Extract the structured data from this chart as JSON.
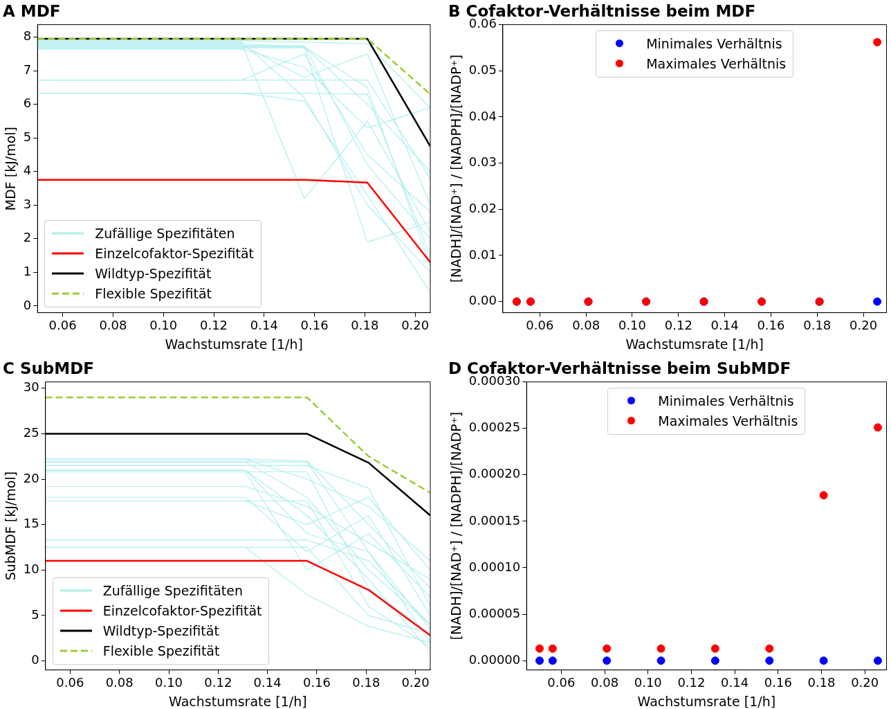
{
  "chart_data": [
    {
      "type": "line",
      "title": "A MDF",
      "xlabel": "Wachstumsrate [1/h]",
      "ylabel": "MDF [kJ/mol]",
      "legend": "bottom left",
      "marker": "none",
      "grid": false,
      "x": [
        0.05,
        0.056,
        0.081,
        0.106,
        0.131,
        0.156,
        0.181,
        0.206
      ],
      "xlim": [
        0.05,
        0.206
      ],
      "ylim": [
        -0.2,
        8.37
      ],
      "xticks": [
        {
          "value": 0.06,
          "label": "0.06"
        },
        {
          "value": 0.08,
          "label": "0.08"
        },
        {
          "value": 0.1,
          "label": "0.10"
        },
        {
          "value": 0.12,
          "label": "0.12"
        },
        {
          "value": 0.14,
          "label": "0.14"
        },
        {
          "value": 0.16,
          "label": "0.16"
        },
        {
          "value": 0.18,
          "label": "0.18"
        },
        {
          "value": 0.2,
          "label": "0.20"
        }
      ],
      "yticks": [
        0,
        1,
        2,
        3,
        4,
        5,
        6,
        7,
        8
      ],
      "series": [
        {
          "name": "Zufällige Spezifitäten",
          "color": "#afeeee",
          "values": [
            6.33,
            6.33,
            6.33,
            6.33,
            6.33,
            6.33,
            6.3,
            1.5
          ]
        },
        {
          "color": "#afeeee",
          "values": [
            6.33,
            6.33,
            6.33,
            6.33,
            6.33,
            6.1,
            3.3,
            0.4
          ]
        },
        {
          "color": "#afeeee",
          "values": [
            6.72,
            6.72,
            6.72,
            6.72,
            6.72,
            6.72,
            6.72,
            3.8
          ]
        },
        {
          "color": "#afeeee",
          "values": [
            6.72,
            6.72,
            6.72,
            6.72,
            6.72,
            7.5,
            4.5,
            2.8
          ]
        },
        {
          "color": "#afeeee",
          "values": [
            7.89,
            7.89,
            7.89,
            7.89,
            7.89,
            7.85,
            7.8,
            5.9
          ]
        },
        {
          "color": "#afeeee",
          "values": [
            7.86,
            7.86,
            7.86,
            7.86,
            7.86,
            6.2,
            3.0,
            1.0
          ]
        },
        {
          "color": "#afeeee",
          "values": [
            7.83,
            7.83,
            7.83,
            7.83,
            7.83,
            3.2,
            5.5,
            2.2
          ]
        },
        {
          "color": "#afeeee",
          "values": [
            7.8,
            7.8,
            7.8,
            7.8,
            7.8,
            7.7,
            6.0,
            4.0
          ]
        },
        {
          "color": "#afeeee",
          "values": [
            7.77,
            7.77,
            7.77,
            7.77,
            7.77,
            6.8,
            7.5,
            3.0
          ]
        },
        {
          "color": "#afeeee",
          "values": [
            7.74,
            7.74,
            7.74,
            7.74,
            7.74,
            7.74,
            4.2,
            2.0
          ]
        },
        {
          "color": "#afeeee",
          "values": [
            7.71,
            7.71,
            7.71,
            7.71,
            7.71,
            7.71,
            6.5,
            1.2
          ]
        },
        {
          "color": "#afeeee",
          "values": [
            7.68,
            7.68,
            7.68,
            7.68,
            7.68,
            7.68,
            1.9,
            2.5
          ]
        },
        {
          "color": "#afeeee",
          "values": [
            7.65,
            7.65,
            7.65,
            7.65,
            7.65,
            7.1,
            5.3,
            5.9
          ]
        },
        {
          "name": "Einzelcofaktor-Spezifität",
          "color": "#ff0000",
          "values": [
            3.75,
            3.75,
            3.75,
            3.75,
            3.75,
            3.75,
            3.67,
            1.3
          ]
        },
        {
          "name": "Wildtyp-Spezifität",
          "color": "#000000",
          "values": [
            7.95,
            7.95,
            7.95,
            7.95,
            7.95,
            7.95,
            7.95,
            4.75
          ]
        },
        {
          "name": "Flexible Spezifität",
          "color": "#9acd32",
          "line_style": "dashed",
          "values": [
            7.95,
            7.95,
            7.95,
            7.95,
            7.95,
            7.95,
            7.95,
            6.3
          ]
        }
      ]
    },
    {
      "type": "scatter",
      "title": "B Cofaktor-Verhältnisse beim MDF",
      "xlabel": "Wachstumsrate [1/h]",
      "ylabel": "[NADH]/[NAD⁺] / [NADPH]/[NADP⁺]",
      "legend": "top",
      "marker": "circle",
      "grid": false,
      "x": [
        0.05,
        0.056,
        0.081,
        0.106,
        0.131,
        0.156,
        0.181,
        0.206
      ],
      "xlim": [
        0.044,
        0.21
      ],
      "ylim": [
        -0.0024,
        0.06
      ],
      "xticks": [
        {
          "value": 0.06,
          "label": "0.06"
        },
        {
          "value": 0.08,
          "label": "0.08"
        },
        {
          "value": 0.1,
          "label": "0.10"
        },
        {
          "value": 0.12,
          "label": "0.12"
        },
        {
          "value": 0.14,
          "label": "0.14"
        },
        {
          "value": 0.16,
          "label": "0.16"
        },
        {
          "value": 0.18,
          "label": "0.18"
        },
        {
          "value": 0.2,
          "label": "0.20"
        }
      ],
      "yticks": [
        {
          "value": 0,
          "label": "0.00"
        },
        {
          "value": 0.01,
          "label": "0.01"
        },
        {
          "value": 0.02,
          "label": "0.02"
        },
        {
          "value": 0.03,
          "label": "0.03"
        },
        {
          "value": 0.04,
          "label": "0.04"
        },
        {
          "value": 0.05,
          "label": "0.05"
        },
        {
          "value": 0.06,
          "label": "0.06"
        }
      ],
      "series": [
        {
          "name": "Minimales Verhältnis",
          "color": "#0000ff",
          "values": [
            0,
            0,
            0,
            0,
            0,
            0,
            0,
            0
          ]
        },
        {
          "name": "Maximales Verhältnis",
          "color": "#ff0000",
          "values": [
            0,
            0,
            0,
            0,
            0,
            0,
            0,
            0.0562
          ]
        }
      ]
    },
    {
      "type": "line",
      "title": "C SubMDF",
      "xlabel": "Wachstumsrate [1/h]",
      "ylabel": "SubMDF [kJ/mol]",
      "legend": "bottom left",
      "marker": "none",
      "grid": false,
      "x": [
        0.05,
        0.056,
        0.081,
        0.106,
        0.131,
        0.156,
        0.181,
        0.206
      ],
      "xlim": [
        0.05,
        0.206
      ],
      "ylim": [
        -1,
        30.7
      ],
      "xticks": [
        {
          "value": 0.06,
          "label": "0.06"
        },
        {
          "value": 0.08,
          "label": "0.08"
        },
        {
          "value": 0.1,
          "label": "0.10"
        },
        {
          "value": 0.12,
          "label": "0.12"
        },
        {
          "value": 0.14,
          "label": "0.14"
        },
        {
          "value": 0.16,
          "label": "0.16"
        },
        {
          "value": 0.18,
          "label": "0.18"
        },
        {
          "value": 0.2,
          "label": "0.20"
        }
      ],
      "yticks": [
        0,
        5,
        10,
        15,
        20,
        25,
        30
      ],
      "series": [
        {
          "name": "Zufällige Spezifitäten",
          "color": "#afeeee",
          "values": [
            22.2,
            22.2,
            22.2,
            22.2,
            22.2,
            22.0,
            15,
            8
          ]
        },
        {
          "color": "#afeeee",
          "values": [
            21.9,
            21.9,
            21.9,
            21.9,
            21.9,
            18,
            10,
            4
          ]
        },
        {
          "color": "#afeeee",
          "values": [
            21.5,
            21.5,
            21.5,
            21.5,
            21.5,
            21.5,
            19,
            6
          ]
        },
        {
          "color": "#afeeee",
          "values": [
            21.0,
            21.0,
            21.0,
            21.0,
            21.0,
            14,
            12,
            2
          ]
        },
        {
          "color": "#afeeee",
          "values": [
            20.8,
            20.8,
            20.8,
            20.8,
            20.8,
            20.8,
            8,
            3
          ]
        },
        {
          "color": "#afeeee",
          "values": [
            19.2,
            19.2,
            19.2,
            19.2,
            19.2,
            17,
            13,
            9
          ]
        },
        {
          "color": "#afeeee",
          "values": [
            18.0,
            18.0,
            18.0,
            18.0,
            18.0,
            12,
            16,
            5
          ]
        },
        {
          "color": "#afeeee",
          "values": [
            17.6,
            17.6,
            17.6,
            17.6,
            17.6,
            17.6,
            6,
            1.5
          ]
        },
        {
          "color": "#afeeee",
          "values": [
            13.3,
            13.3,
            13.3,
            13.3,
            13.3,
            13.3,
            11,
            4
          ]
        },
        {
          "color": "#afeeee",
          "values": [
            12.5,
            12.5,
            12.5,
            12.5,
            12.5,
            7.3,
            3.8,
            2
          ]
        },
        {
          "color": "#afeeee",
          "values": [
            22.2,
            22.2,
            22.2,
            22.2,
            22.2,
            20,
            17,
            11
          ]
        },
        {
          "color": "#afeeee",
          "values": [
            21.0,
            21.0,
            21.0,
            21.0,
            21.0,
            16,
            9,
            1
          ]
        },
        {
          "color": "#afeeee",
          "values": [
            20.8,
            20.8,
            20.8,
            20.8,
            20.8,
            10,
            14,
            7
          ]
        },
        {
          "color": "#afeeee",
          "values": [
            12.5,
            12.5,
            12.5,
            12.5,
            12.5,
            12.5,
            5,
            3
          ]
        },
        {
          "color": "#afeeee",
          "values": [
            21.9,
            21.9,
            21.9,
            21.9,
            21.9,
            21.9,
            12,
            3.5
          ]
        },
        {
          "color": "#afeeee",
          "values": [
            17.6,
            17.6,
            17.6,
            17.6,
            17.6,
            15,
            18,
            10
          ]
        },
        {
          "name": "Einzelcofaktor-Spezifität",
          "color": "#ff0000",
          "values": [
            11,
            11,
            11,
            11,
            11,
            11,
            7.8,
            2.8
          ]
        },
        {
          "name": "Wildtyp-Spezifität",
          "color": "#000000",
          "values": [
            25,
            25,
            25,
            25,
            25,
            25,
            21.8,
            16
          ]
        },
        {
          "name": "Flexible Spezifität",
          "color": "#9acd32",
          "line_style": "dashed",
          "values": [
            29,
            29,
            29,
            29,
            29,
            29,
            22.5,
            18.5
          ]
        }
      ]
    },
    {
      "type": "scatter",
      "title": "D Cofaktor-Verhältnisse beim SubMDF",
      "xlabel": "Wachstumsrate [1/h]",
      "ylabel": "[NADH]/[NAD⁺] / [NADPH]/[NADP⁺]",
      "legend": "top",
      "marker": "circle",
      "grid": false,
      "x": [
        0.05,
        0.056,
        0.081,
        0.106,
        0.131,
        0.156,
        0.181,
        0.206
      ],
      "xlim": [
        0.044,
        0.21
      ],
      "ylim": [
        -1e-05,
        0.0003
      ],
      "xticks": [
        {
          "value": 0.06,
          "label": "0.06"
        },
        {
          "value": 0.08,
          "label": "0.08"
        },
        {
          "value": 0.1,
          "label": "0.10"
        },
        {
          "value": 0.12,
          "label": "0.12"
        },
        {
          "value": 0.14,
          "label": "0.14"
        },
        {
          "value": 0.16,
          "label": "0.16"
        },
        {
          "value": 0.18,
          "label": "0.18"
        },
        {
          "value": 0.2,
          "label": "0.20"
        }
      ],
      "yticks": [
        {
          "value": 0,
          "label": "0.00000"
        },
        {
          "value": 5e-05,
          "label": "0.00005"
        },
        {
          "value": 0.0001,
          "label": "0.00010"
        },
        {
          "value": 0.00015,
          "label": "0.00015"
        },
        {
          "value": 0.0002,
          "label": "0.00020"
        },
        {
          "value": 0.00025,
          "label": "0.00025"
        },
        {
          "value": 0.0003,
          "label": "0.00030"
        }
      ],
      "series": [
        {
          "name": "Minimales Verhältnis",
          "color": "#0000ff",
          "values": [
            0,
            0,
            0,
            0,
            0,
            0,
            0,
            0
          ]
        },
        {
          "name": "Maximales Verhältnis",
          "color": "#ff0000",
          "values": [
            1.3e-05,
            1.3e-05,
            1.3e-05,
            1.3e-05,
            1.3e-05,
            1.3e-05,
            0.000178,
            0.000251
          ]
        }
      ]
    }
  ]
}
